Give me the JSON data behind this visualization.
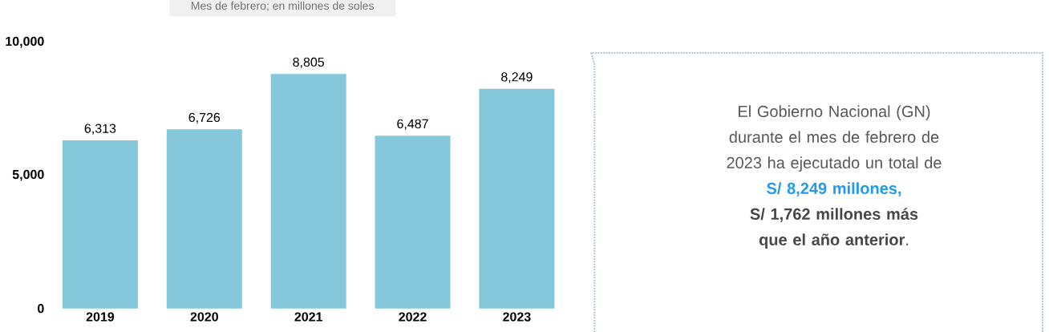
{
  "chart_data": [
    {
      "type": "bar",
      "subtitle": "Mes de febrero; en millones de soles",
      "categories": [
        "2019",
        "2020",
        "2021",
        "2022",
        "2023"
      ],
      "values": [
        6313,
        6726,
        8805,
        6487,
        8249
      ],
      "value_labels": [
        "6,313",
        "6,726",
        "8,805",
        "6,487",
        "8,249"
      ],
      "color": "#85c8dc",
      "ylim": [
        0,
        10000
      ],
      "yticks": [
        {
          "value": 0,
          "label": "0"
        },
        {
          "value": 5000,
          "label": "5,000"
        },
        {
          "value": 10000,
          "label": "10,000"
        }
      ],
      "grid": false
    },
    {
      "type": "other",
      "annotations": [
        "El Gobierno Nacional (GN) durante el mes de febrero de 2023 ha ejecutado un total de",
        "S/ 8,249 millones,",
        "**S/ 1,762 millones más que el año anterior**."
      ]
    }
  ]
}
